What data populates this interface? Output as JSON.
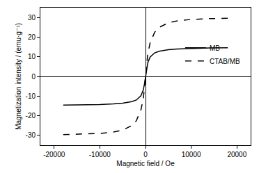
{
  "chart_data": {
    "type": "line",
    "x_label": "Magnetic field / Oe",
    "y_label": "Magnetization intensity / (emu·g⁻¹)",
    "xlim": [
      -23000,
      23000
    ],
    "ylim": [
      -35,
      35
    ],
    "xticks": [
      -20000,
      -10000,
      0,
      10000,
      20000
    ],
    "yticks": [
      -30,
      -20,
      -10,
      0,
      10,
      20,
      30
    ],
    "grid": false,
    "legend": "right",
    "series": [
      {
        "name": "MB",
        "color": "#000000",
        "line_style": "solid",
        "x": [
          -18000,
          -14000,
          -10000,
          -7000,
          -5000,
          -3000,
          -2000,
          -1000,
          -500,
          -200,
          0,
          200,
          500,
          1000,
          2000,
          3000,
          5000,
          7000,
          10000,
          14000,
          18000
        ],
        "values": [
          -14.6,
          -14.5,
          -14.3,
          -14.0,
          -13.6,
          -12.8,
          -12.0,
          -9.8,
          -7.0,
          -3.5,
          0,
          3.5,
          7.0,
          9.8,
          12.0,
          12.8,
          13.6,
          14.0,
          14.3,
          14.5,
          14.6
        ]
      },
      {
        "name": "CTAB/MB",
        "color": "#000000",
        "line_style": "dashed",
        "x": [
          -18000,
          -14000,
          -10000,
          -7000,
          -5000,
          -3000,
          -2000,
          -1000,
          -500,
          -200,
          0,
          200,
          500,
          1000,
          2000,
          3000,
          5000,
          7000,
          10000,
          14000,
          18000
        ],
        "values": [
          -29.6,
          -29.4,
          -29.0,
          -28.3,
          -27.3,
          -25.0,
          -22.5,
          -17.0,
          -11.5,
          -5.0,
          0,
          5.0,
          11.5,
          17.0,
          22.5,
          25.0,
          27.3,
          28.3,
          29.0,
          29.4,
          29.6
        ]
      }
    ]
  }
}
